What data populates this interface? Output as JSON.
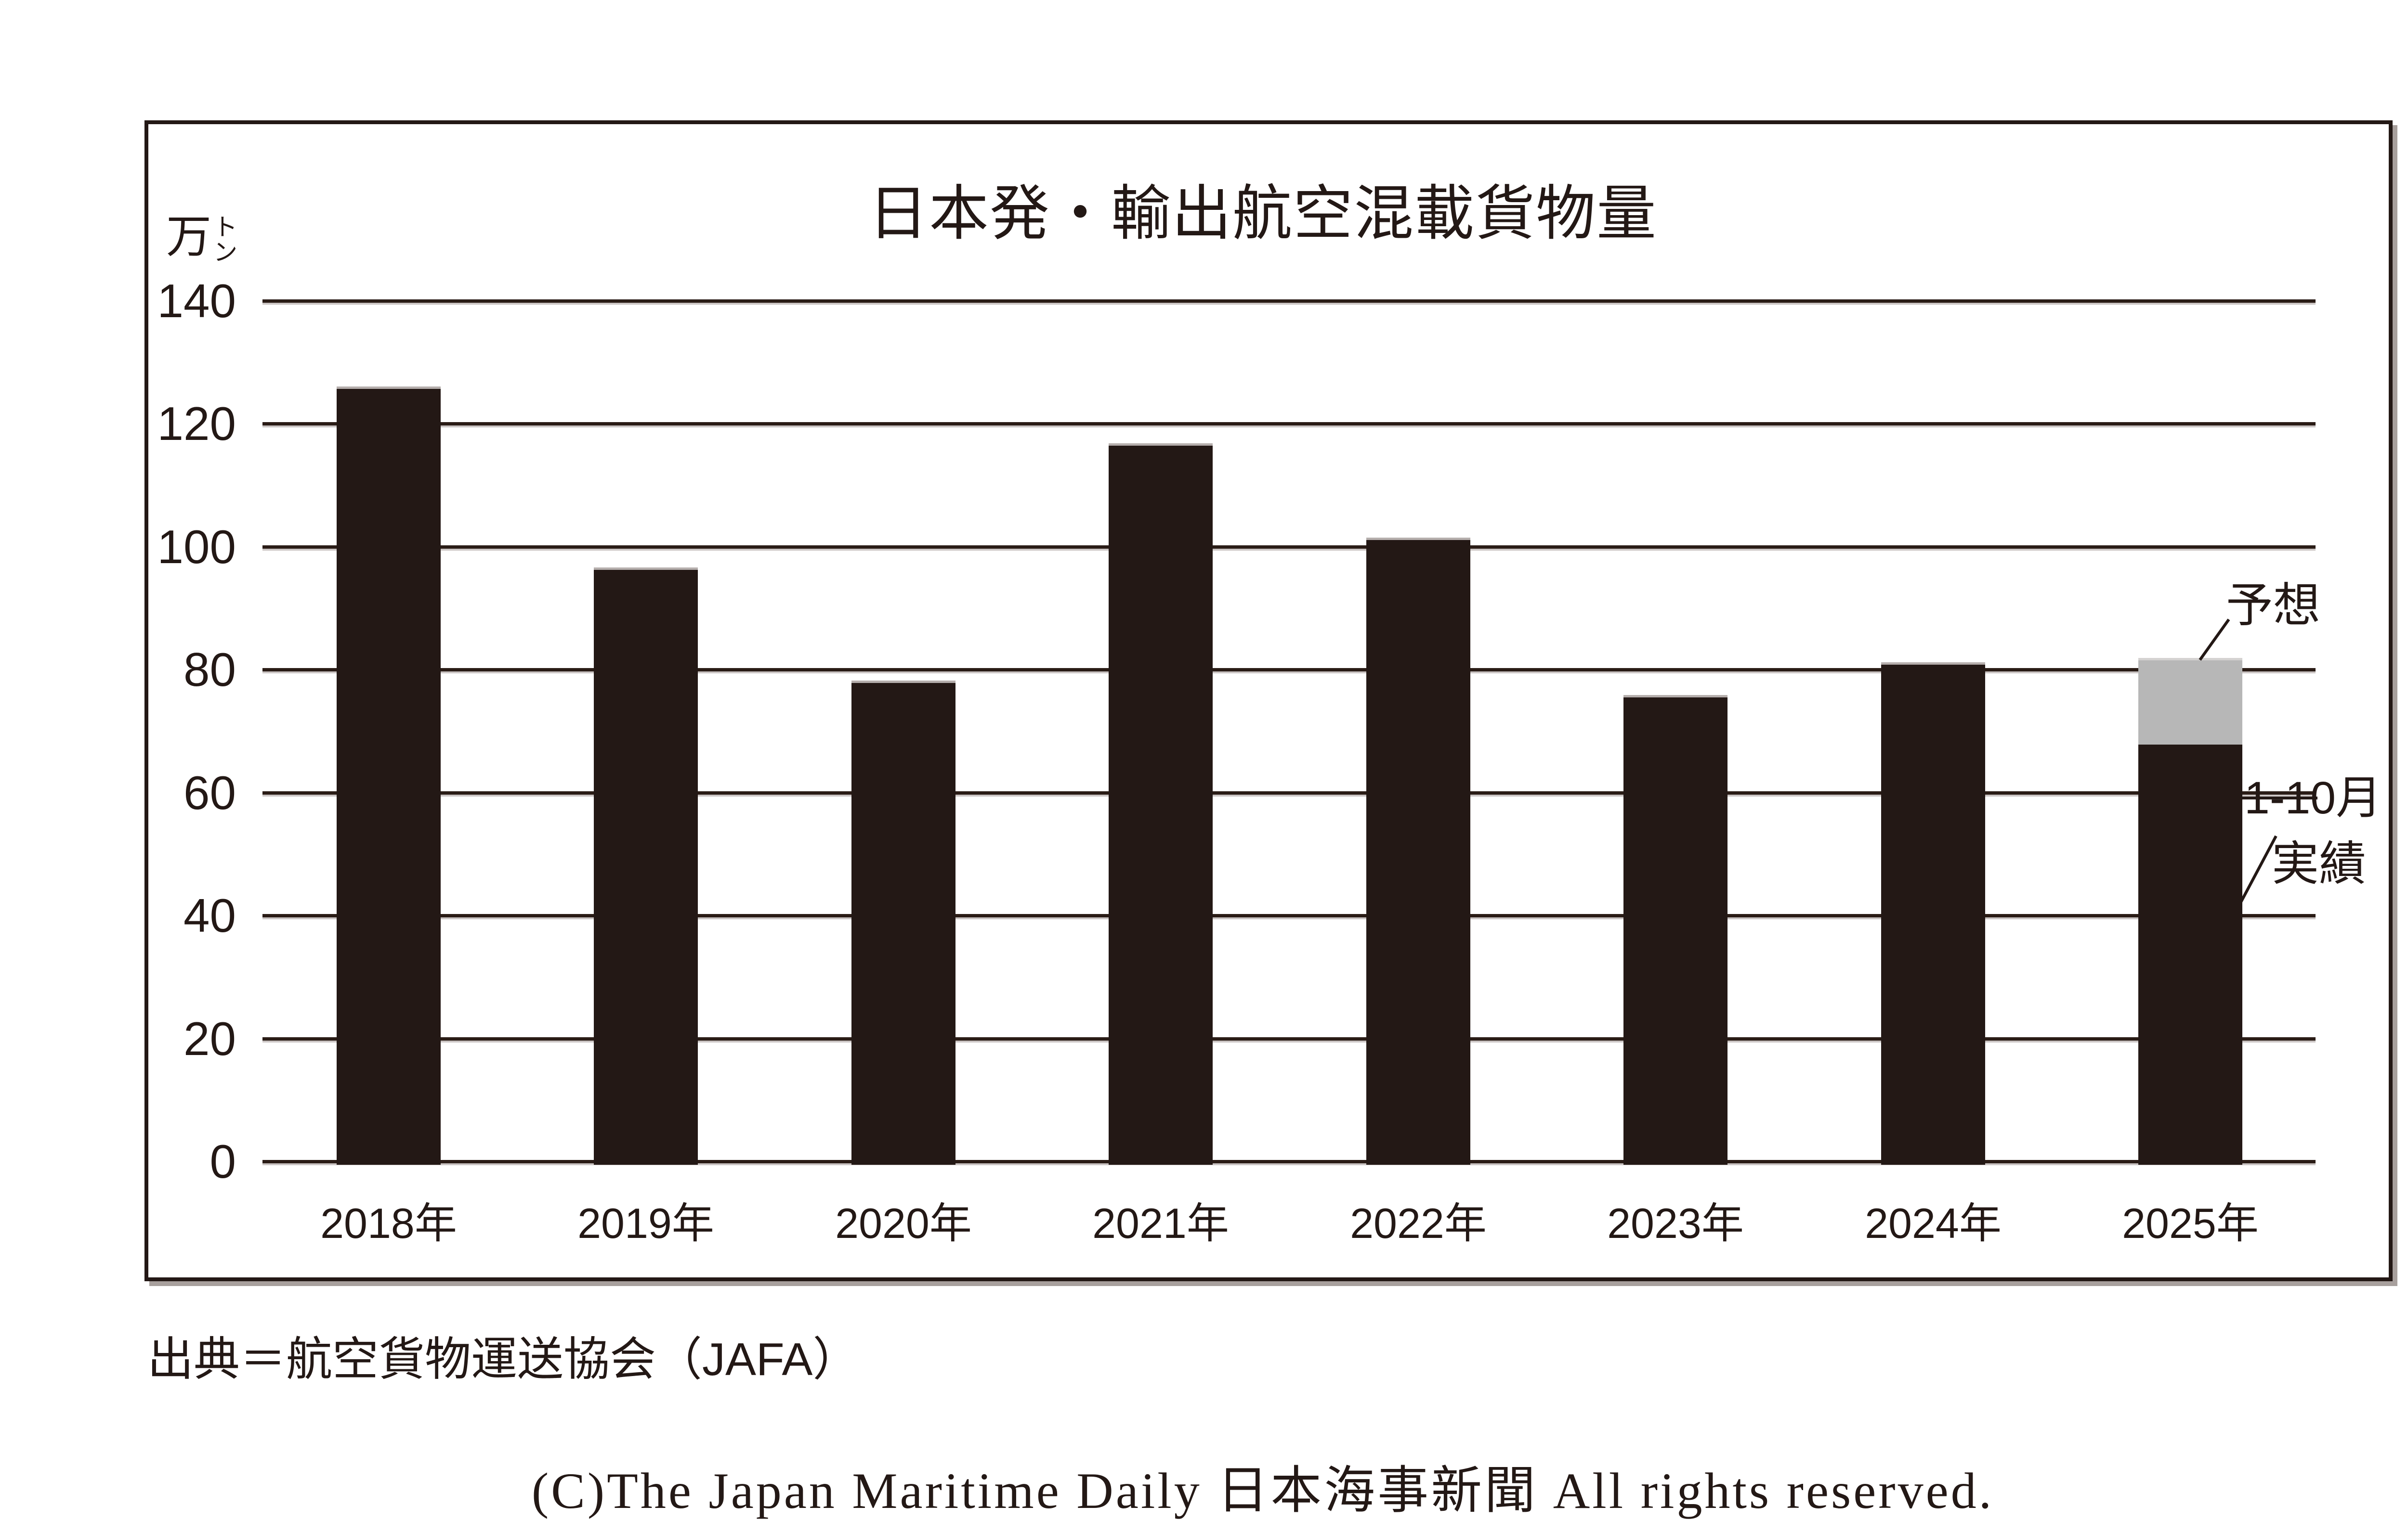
{
  "chart_data": {
    "type": "bar",
    "stacked": true,
    "title": "日本発・輸出航空混載貨物量",
    "unit": "万トン",
    "unit_main": "万",
    "unit_small_1": "ト",
    "unit_small_2": "ン",
    "categories": [
      "2018年",
      "2019年",
      "2020年",
      "2021年",
      "2022年",
      "2023年",
      "2024年",
      "2025年"
    ],
    "series": [
      {
        "name": "実績",
        "color": "#231815",
        "values": [
          126.1,
          96.6,
          78.2,
          116.8,
          101.5,
          75.9,
          81.2,
          67.8
        ]
      },
      {
        "name": "予想",
        "color": "#b7b7b7",
        "values": [
          0,
          0,
          0,
          0,
          0,
          0,
          0,
          14.1
        ]
      }
    ],
    "ylim": [
      0,
      140
    ],
    "yticks": [
      140,
      120,
      100,
      80,
      60,
      40,
      20,
      0
    ],
    "grid": "horizontal",
    "legend_position": "none",
    "annotations": {
      "forecast": "予想",
      "actual_line1": "1-10月",
      "actual_line2": "実績"
    },
    "notes_2025": {
      "actual_jan_oct": 67.8,
      "forecast_total": 81.9
    }
  },
  "footer": {
    "source": "出典＝航空貨物運送協会（JAFA）",
    "copyright": "(C)The Japan Maritime Daily 日本海事新聞 All rights reserved."
  },
  "colors": {
    "bar": "#231815",
    "forecast_segment": "#b7b7b7",
    "gridline": "#2a1c16",
    "frame_border": "#231815",
    "frame_shadow": "#a8a09d",
    "background": "#ffffff"
  }
}
